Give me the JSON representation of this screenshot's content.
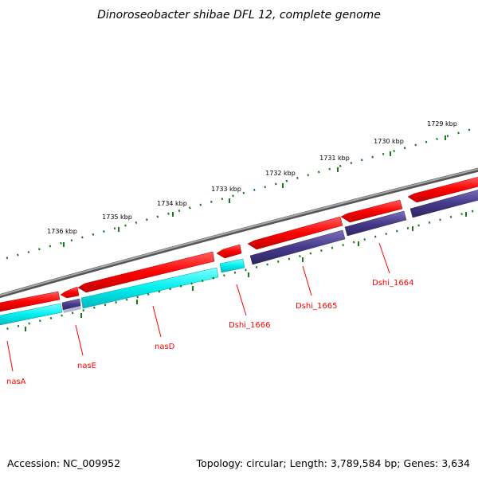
{
  "title": "Dinoroseobacter shibae DFL 12, complete genome",
  "footer": {
    "accession": "Accession: NC_009952",
    "summary": "Topology: circular; Length: 3,789,584 bp; Genes: 3,634"
  },
  "ruler_labels": [
    "1736 kbp",
    "1735 kbp",
    "1734 kbp",
    "1733 kbp",
    "1732 kbp",
    "1731 kbp",
    "1730 kbp",
    "1729 kbp"
  ],
  "gene_labels": [
    "nasA",
    "nasE",
    "nasD",
    "Dshi_1666",
    "Dshi_1665",
    "Dshi_1664"
  ],
  "colors": {
    "backbone": "#808080",
    "cds": "#ff0000",
    "feature_cyan": "#00e5ee",
    "feature_navy": "#4b3f8c",
    "ruler_ticks": "#1a7a1a",
    "label_text": "#ff0000"
  }
}
